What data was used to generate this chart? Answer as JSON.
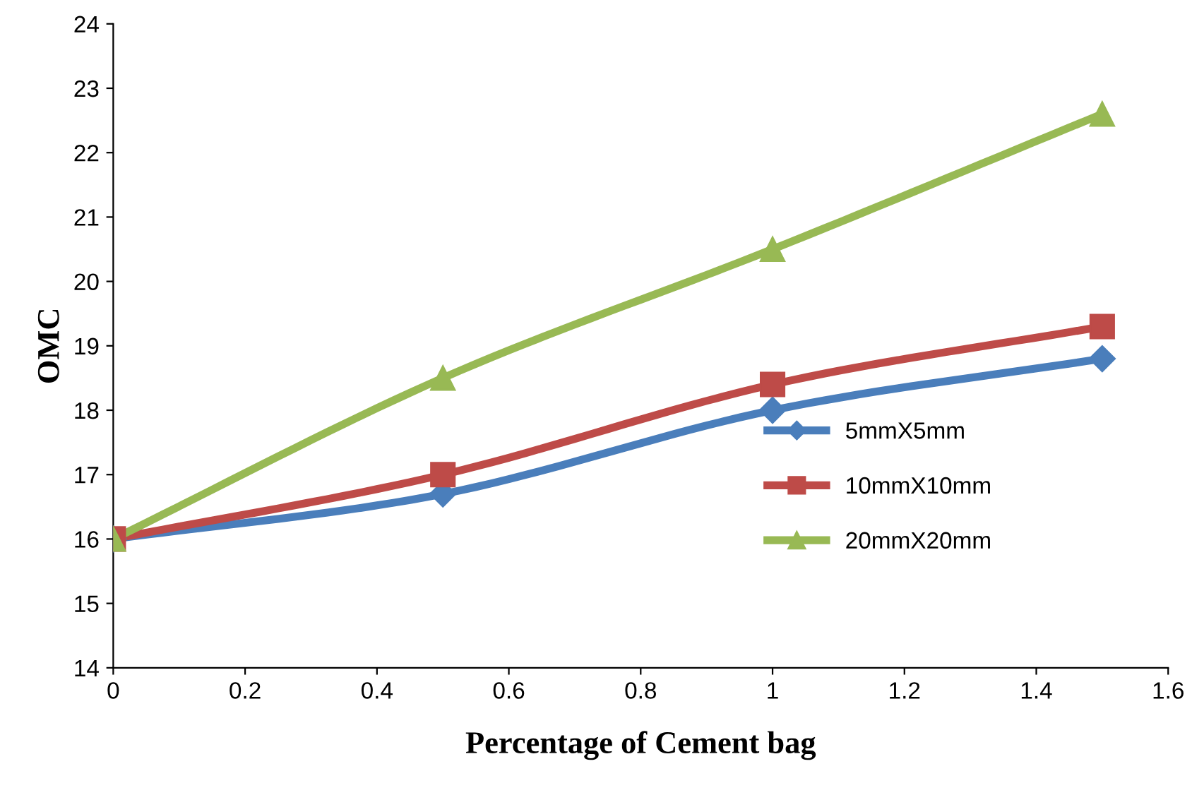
{
  "chart_data": {
    "type": "line",
    "xlabel": "Percentage of Cement bag",
    "ylabel": "OMC",
    "x": [
      0,
      0.5,
      1,
      1.5
    ],
    "series": [
      {
        "name": "5mmX5mm",
        "color": "#4a7ebb",
        "marker": "diamond",
        "values": [
          16,
          16.7,
          18,
          18.8
        ]
      },
      {
        "name": "10mmX10mm",
        "color": "#be4b48",
        "marker": "square",
        "values": [
          16,
          17,
          18.4,
          19.3
        ]
      },
      {
        "name": "20mmX20mm",
        "color": "#98b954",
        "marker": "triangle",
        "values": [
          16,
          18.5,
          20.5,
          22.6
        ]
      }
    ],
    "xlim": [
      0,
      1.6
    ],
    "xticks": [
      0,
      0.2,
      0.4,
      0.6,
      0.8,
      1,
      1.2,
      1.4,
      1.6
    ],
    "ylim": [
      14,
      24
    ],
    "yticks": [
      14,
      15,
      16,
      17,
      18,
      19,
      20,
      21,
      22,
      23,
      24
    ],
    "grid": false,
    "legend": "right",
    "line_style": "solid"
  }
}
